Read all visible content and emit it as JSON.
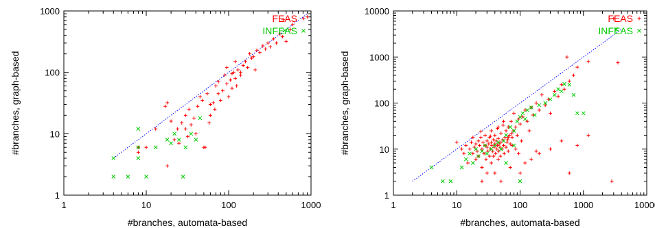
{
  "colors": {
    "feas": "#ff0000",
    "infeas": "#00cc00",
    "diagonal": "#0000ff"
  },
  "chart_data": [
    {
      "type": "scatter",
      "title": "",
      "xlabel": "#branches, automata-based",
      "ylabel": "#branches, graph-based",
      "xscale": "log",
      "yscale": "log",
      "xlim": [
        1,
        1000
      ],
      "ylim": [
        1,
        1000
      ],
      "xticks": [
        "1",
        "10",
        "100",
        "1000"
      ],
      "yticks": [
        "1",
        "10",
        "100",
        "1000"
      ],
      "legend_position": "top-right",
      "diagonal": "y = x",
      "series": [
        {
          "name": "FEAS",
          "marker": "+",
          "color": "#ff0000",
          "points": [
            [
              8,
              6
            ],
            [
              8,
              5
            ],
            [
              10,
              6
            ],
            [
              13,
              12
            ],
            [
              17,
              28
            ],
            [
              18,
              32
            ],
            [
              18,
              3
            ],
            [
              20,
              16
            ],
            [
              22,
              8
            ],
            [
              24,
              12
            ],
            [
              25,
              7
            ],
            [
              27,
              15
            ],
            [
              30,
              12
            ],
            [
              30,
              20
            ],
            [
              32,
              9
            ],
            [
              33,
              25
            ],
            [
              35,
              14
            ],
            [
              38,
              18
            ],
            [
              40,
              10
            ],
            [
              42,
              28
            ],
            [
              45,
              40
            ],
            [
              48,
              35
            ],
            [
              50,
              6
            ],
            [
              52,
              6
            ],
            [
              55,
              45
            ],
            [
              58,
              15
            ],
            [
              60,
              30
            ],
            [
              65,
              32
            ],
            [
              68,
              25
            ],
            [
              70,
              60
            ],
            [
              75,
              45
            ],
            [
              80,
              35
            ],
            [
              85,
              50
            ],
            [
              90,
              90
            ],
            [
              95,
              65
            ],
            [
              100,
              40
            ],
            [
              105,
              75
            ],
            [
              110,
              55
            ],
            [
              115,
              100
            ],
            [
              120,
              80
            ],
            [
              125,
              60
            ],
            [
              130,
              110
            ],
            [
              140,
              90
            ],
            [
              150,
              130
            ],
            [
              160,
              150
            ],
            [
              170,
              120
            ],
            [
              180,
              200
            ],
            [
              190,
              170
            ],
            [
              200,
              180
            ],
            [
              210,
              110
            ],
            [
              220,
              230
            ],
            [
              240,
              210
            ],
            [
              260,
              270
            ],
            [
              280,
              240
            ],
            [
              300,
              300
            ],
            [
              320,
              260
            ],
            [
              350,
              350
            ],
            [
              380,
              300
            ],
            [
              420,
              420
            ],
            [
              450,
              380
            ],
            [
              460,
              720
            ],
            [
              500,
              320
            ],
            [
              560,
              500
            ],
            [
              600,
              600
            ],
            [
              900,
              800
            ],
            [
              120,
              150
            ],
            [
              140,
              100
            ],
            [
              75,
              70
            ],
            [
              95,
              120
            ],
            [
              110,
              95
            ],
            [
              60,
              20
            ]
          ]
        },
        {
          "name": "INFEAS",
          "marker": "x",
          "color": "#00cc00",
          "points": [
            [
              4,
              2
            ],
            [
              4,
              4
            ],
            [
              6,
              2
            ],
            [
              8,
              4
            ],
            [
              8,
              12
            ],
            [
              8,
              6
            ],
            [
              10,
              2
            ],
            [
              13,
              6
            ],
            [
              18,
              8
            ],
            [
              20,
              7
            ],
            [
              22,
              10
            ],
            [
              25,
              8
            ],
            [
              28,
              2
            ],
            [
              30,
              6
            ],
            [
              35,
              10
            ],
            [
              40,
              8
            ],
            [
              45,
              18
            ],
            [
              480,
              480
            ]
          ]
        }
      ]
    },
    {
      "type": "scatter",
      "title": "",
      "xlabel": "#branches, automata-based",
      "ylabel": "#branches, graph-based",
      "xscale": "log",
      "yscale": "log",
      "xlim": [
        1,
        10000
      ],
      "ylim": [
        1,
        10000
      ],
      "xticks": [
        "1",
        "10",
        "100",
        "1000",
        "10000"
      ],
      "yticks": [
        "1",
        "10",
        "100",
        "1000",
        "10000"
      ],
      "legend_position": "top-right",
      "diagonal": "y = x",
      "series": [
        {
          "name": "FEAS",
          "marker": "+",
          "color": "#ff0000",
          "points": [
            [
              10,
              14
            ],
            [
              12,
              10
            ],
            [
              13,
              8
            ],
            [
              14,
              12
            ],
            [
              15,
              5
            ],
            [
              16,
              10
            ],
            [
              17,
              14
            ],
            [
              18,
              8
            ],
            [
              18,
              18
            ],
            [
              19,
              11
            ],
            [
              20,
              6
            ],
            [
              20,
              13
            ],
            [
              21,
              9
            ],
            [
              22,
              15
            ],
            [
              22,
              7
            ],
            [
              23,
              12
            ],
            [
              24,
              18
            ],
            [
              25,
              10
            ],
            [
              25,
              4
            ],
            [
              26,
              14
            ],
            [
              27,
              8
            ],
            [
              28,
              12
            ],
            [
              28,
              20
            ],
            [
              29,
              6
            ],
            [
              30,
              11
            ],
            [
              30,
              15
            ],
            [
              31,
              9
            ],
            [
              32,
              13
            ],
            [
              33,
              7
            ],
            [
              33,
              18
            ],
            [
              34,
              10
            ],
            [
              35,
              14
            ],
            [
              35,
              5
            ],
            [
              36,
              12
            ],
            [
              37,
              9
            ],
            [
              38,
              16
            ],
            [
              38,
              7
            ],
            [
              39,
              11
            ],
            [
              40,
              13
            ],
            [
              40,
              20
            ],
            [
              41,
              8
            ],
            [
              42,
              15
            ],
            [
              43,
              10
            ],
            [
              44,
              12
            ],
            [
              45,
              6
            ],
            [
              45,
              17
            ],
            [
              46,
              9
            ],
            [
              47,
              13
            ],
            [
              48,
              11
            ],
            [
              49,
              7
            ],
            [
              50,
              14
            ],
            [
              50,
              22
            ],
            [
              52,
              10
            ],
            [
              53,
              16
            ],
            [
              55,
              12
            ],
            [
              56,
              8
            ],
            [
              58,
              18
            ],
            [
              60,
              11
            ],
            [
              60,
              25
            ],
            [
              62,
              14
            ],
            [
              65,
              9
            ],
            [
              65,
              30
            ],
            [
              68,
              20
            ],
            [
              70,
              13
            ],
            [
              72,
              40
            ],
            [
              75,
              18
            ],
            [
              78,
              25
            ],
            [
              80,
              60
            ],
            [
              85,
              30
            ],
            [
              90,
              20
            ],
            [
              95,
              45
            ],
            [
              100,
              35
            ],
            [
              105,
              15
            ],
            [
              110,
              50
            ],
            [
              120,
              70
            ],
            [
              130,
              40
            ],
            [
              140,
              25
            ],
            [
              150,
              80
            ],
            [
              160,
              55
            ],
            [
              180,
              100
            ],
            [
              200,
              70
            ],
            [
              220,
              150
            ],
            [
              250,
              90
            ],
            [
              280,
              120
            ],
            [
              300,
              60
            ],
            [
              350,
              180
            ],
            [
              400,
              140
            ],
            [
              450,
              250
            ],
            [
              500,
              200
            ],
            [
              550,
              1000
            ],
            [
              600,
              300
            ],
            [
              700,
              400
            ],
            [
              800,
              600
            ],
            [
              1200,
              800
            ],
            [
              2800,
              2
            ],
            [
              3000,
              6800
            ],
            [
              3500,
              750
            ],
            [
              40,
              3
            ],
            [
              25,
              2
            ],
            [
              120,
              5
            ],
            [
              200,
              8
            ],
            [
              300,
              10
            ],
            [
              450,
              15
            ],
            [
              600,
              3
            ],
            [
              800,
              12
            ],
            [
              1200,
              20
            ],
            [
              30,
              3
            ],
            [
              50,
              2
            ],
            [
              70,
              4
            ],
            [
              100,
              3
            ],
            [
              150,
              6
            ],
            [
              180,
              9
            ],
            [
              35,
              25
            ],
            [
              45,
              30
            ],
            [
              55,
              40
            ],
            [
              65,
              18
            ],
            [
              75,
              12
            ],
            [
              85,
              10
            ],
            [
              95,
              8
            ],
            [
              24,
              24
            ],
            [
              34,
              19
            ],
            [
              44,
              28
            ],
            [
              54,
              33
            ],
            [
              64,
              16
            ],
            [
              74,
              22
            ]
          ]
        },
        {
          "name": "INFEAS",
          "marker": "x",
          "color": "#00cc00",
          "points": [
            [
              4,
              4
            ],
            [
              6,
              2
            ],
            [
              8,
              2
            ],
            [
              12,
              4
            ],
            [
              14,
              6
            ],
            [
              16,
              8
            ],
            [
              18,
              5
            ],
            [
              20,
              10
            ],
            [
              22,
              7
            ],
            [
              25,
              9
            ],
            [
              28,
              12
            ],
            [
              30,
              8
            ],
            [
              35,
              10
            ],
            [
              40,
              12
            ],
            [
              45,
              14
            ],
            [
              50,
              10
            ],
            [
              55,
              15
            ],
            [
              60,
              20
            ],
            [
              70,
              30
            ],
            [
              80,
              25
            ],
            [
              90,
              40
            ],
            [
              100,
              50
            ],
            [
              110,
              60
            ],
            [
              120,
              45
            ],
            [
              130,
              70
            ],
            [
              150,
              80
            ],
            [
              170,
              55
            ],
            [
              200,
              90
            ],
            [
              250,
              100
            ],
            [
              300,
              120
            ],
            [
              350,
              150
            ],
            [
              400,
              200
            ],
            [
              450,
              180
            ],
            [
              500,
              260
            ],
            [
              600,
              250
            ],
            [
              700,
              150
            ],
            [
              800,
              60
            ],
            [
              1000,
              60
            ],
            [
              3300,
              4000
            ],
            [
              100,
              2
            ],
            [
              60,
              5
            ],
            [
              80,
              12
            ]
          ]
        }
      ]
    }
  ]
}
